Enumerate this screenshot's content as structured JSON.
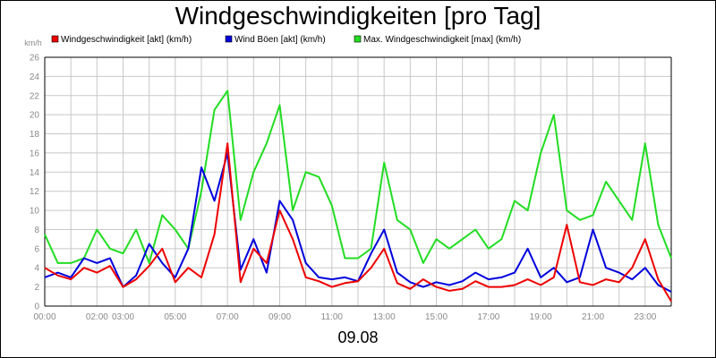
{
  "title": "Windgeschwindigkeiten [pro Tag]",
  "date_label": "09.08",
  "colors": {
    "akt": "#ee0000",
    "boeen": "#0000dd",
    "max": "#22dd22",
    "grid": "#c8c8c8",
    "axis": "#000000"
  },
  "chart_data": {
    "type": "line",
    "title": "Windgeschwindigkeiten [pro Tag]",
    "ylabel": "km/h",
    "xlabel": "09.08",
    "ylim": [
      0,
      26
    ],
    "yticks": [
      "0",
      "2",
      "4",
      "6",
      "8",
      "10",
      "12",
      "14",
      "16",
      "18",
      "20",
      "22",
      "24",
      "26"
    ],
    "xlim": [
      0,
      24
    ],
    "xticks": [
      {
        "t": 0,
        "label": "00:00"
      },
      {
        "t": 2,
        "label": "02:00"
      },
      {
        "t": 3,
        "label": "03:00"
      },
      {
        "t": 5,
        "label": "05:00"
      },
      {
        "t": 7,
        "label": "07:00"
      },
      {
        "t": 9,
        "label": "09:00"
      },
      {
        "t": 11,
        "label": "11:00"
      },
      {
        "t": 13,
        "label": "13:00"
      },
      {
        "t": 15,
        "label": "15:00"
      },
      {
        "t": 17,
        "label": "17:00"
      },
      {
        "t": 19,
        "label": "19:00"
      },
      {
        "t": 21,
        "label": "21:00"
      },
      {
        "t": 23,
        "label": "23:00"
      }
    ],
    "grid": true,
    "legend": "top-left",
    "x": [
      0,
      0.5,
      1,
      1.5,
      2,
      2.5,
      3,
      3.5,
      4,
      4.5,
      5,
      5.5,
      6,
      6.5,
      7,
      7.5,
      8,
      8.5,
      9,
      9.5,
      10,
      10.5,
      11,
      11.5,
      12,
      12.5,
      13,
      13.5,
      14,
      14.5,
      15,
      15.5,
      16,
      16.5,
      17,
      17.5,
      18,
      18.5,
      19,
      19.5,
      20,
      20.5,
      21,
      21.5,
      22,
      22.5,
      23,
      23.5,
      24
    ],
    "series": [
      {
        "name": "Windgeschwindigkeit [akt] (km/h)",
        "color": "#ee0000",
        "values": [
          4,
          3.2,
          2.8,
          4,
          3.5,
          4.2,
          2,
          2.8,
          4.2,
          6,
          2.5,
          4,
          3,
          7.5,
          17,
          2.5,
          6,
          4.5,
          10,
          7,
          3,
          2.6,
          2,
          2.4,
          2.6,
          4,
          6,
          2.4,
          1.8,
          2.8,
          2,
          1.6,
          1.8,
          2.6,
          2,
          2,
          2.2,
          2.8,
          2.2,
          3,
          8.5,
          2.5,
          2.2,
          2.8,
          2.5,
          4,
          7,
          2.8,
          0.5
        ]
      },
      {
        "name": "Wind Böen [akt] (km/h)",
        "color": "#0000dd",
        "values": [
          3,
          3.5,
          3,
          5,
          4.5,
          5,
          2,
          3.2,
          6.5,
          4.5,
          3,
          6,
          14.5,
          11,
          16,
          3.8,
          7,
          3.5,
          11,
          9,
          4.5,
          3,
          2.8,
          3,
          2.6,
          5.5,
          8,
          3.5,
          2.5,
          2,
          2.5,
          2.2,
          2.6,
          3.5,
          2.8,
          3,
          3.5,
          6,
          3,
          4,
          2.5,
          3,
          8,
          4,
          3.5,
          2.8,
          4,
          2.2,
          1.5
        ]
      },
      {
        "name": "Max. Windgeschwindigkeit [max] (km/h)",
        "color": "#22dd22",
        "values": [
          7.5,
          4.5,
          4.5,
          5,
          8,
          6,
          5.5,
          8,
          4.5,
          9.5,
          8,
          6,
          12,
          20.5,
          22.5,
          9,
          14,
          17,
          21,
          10,
          14,
          13.5,
          10.5,
          5,
          5,
          6,
          15,
          9,
          8,
          4.5,
          7,
          6,
          7,
          8,
          6,
          7,
          11,
          10,
          16,
          20,
          10,
          9,
          9.5,
          13,
          11,
          9,
          17,
          8.5,
          5
        ]
      }
    ]
  }
}
